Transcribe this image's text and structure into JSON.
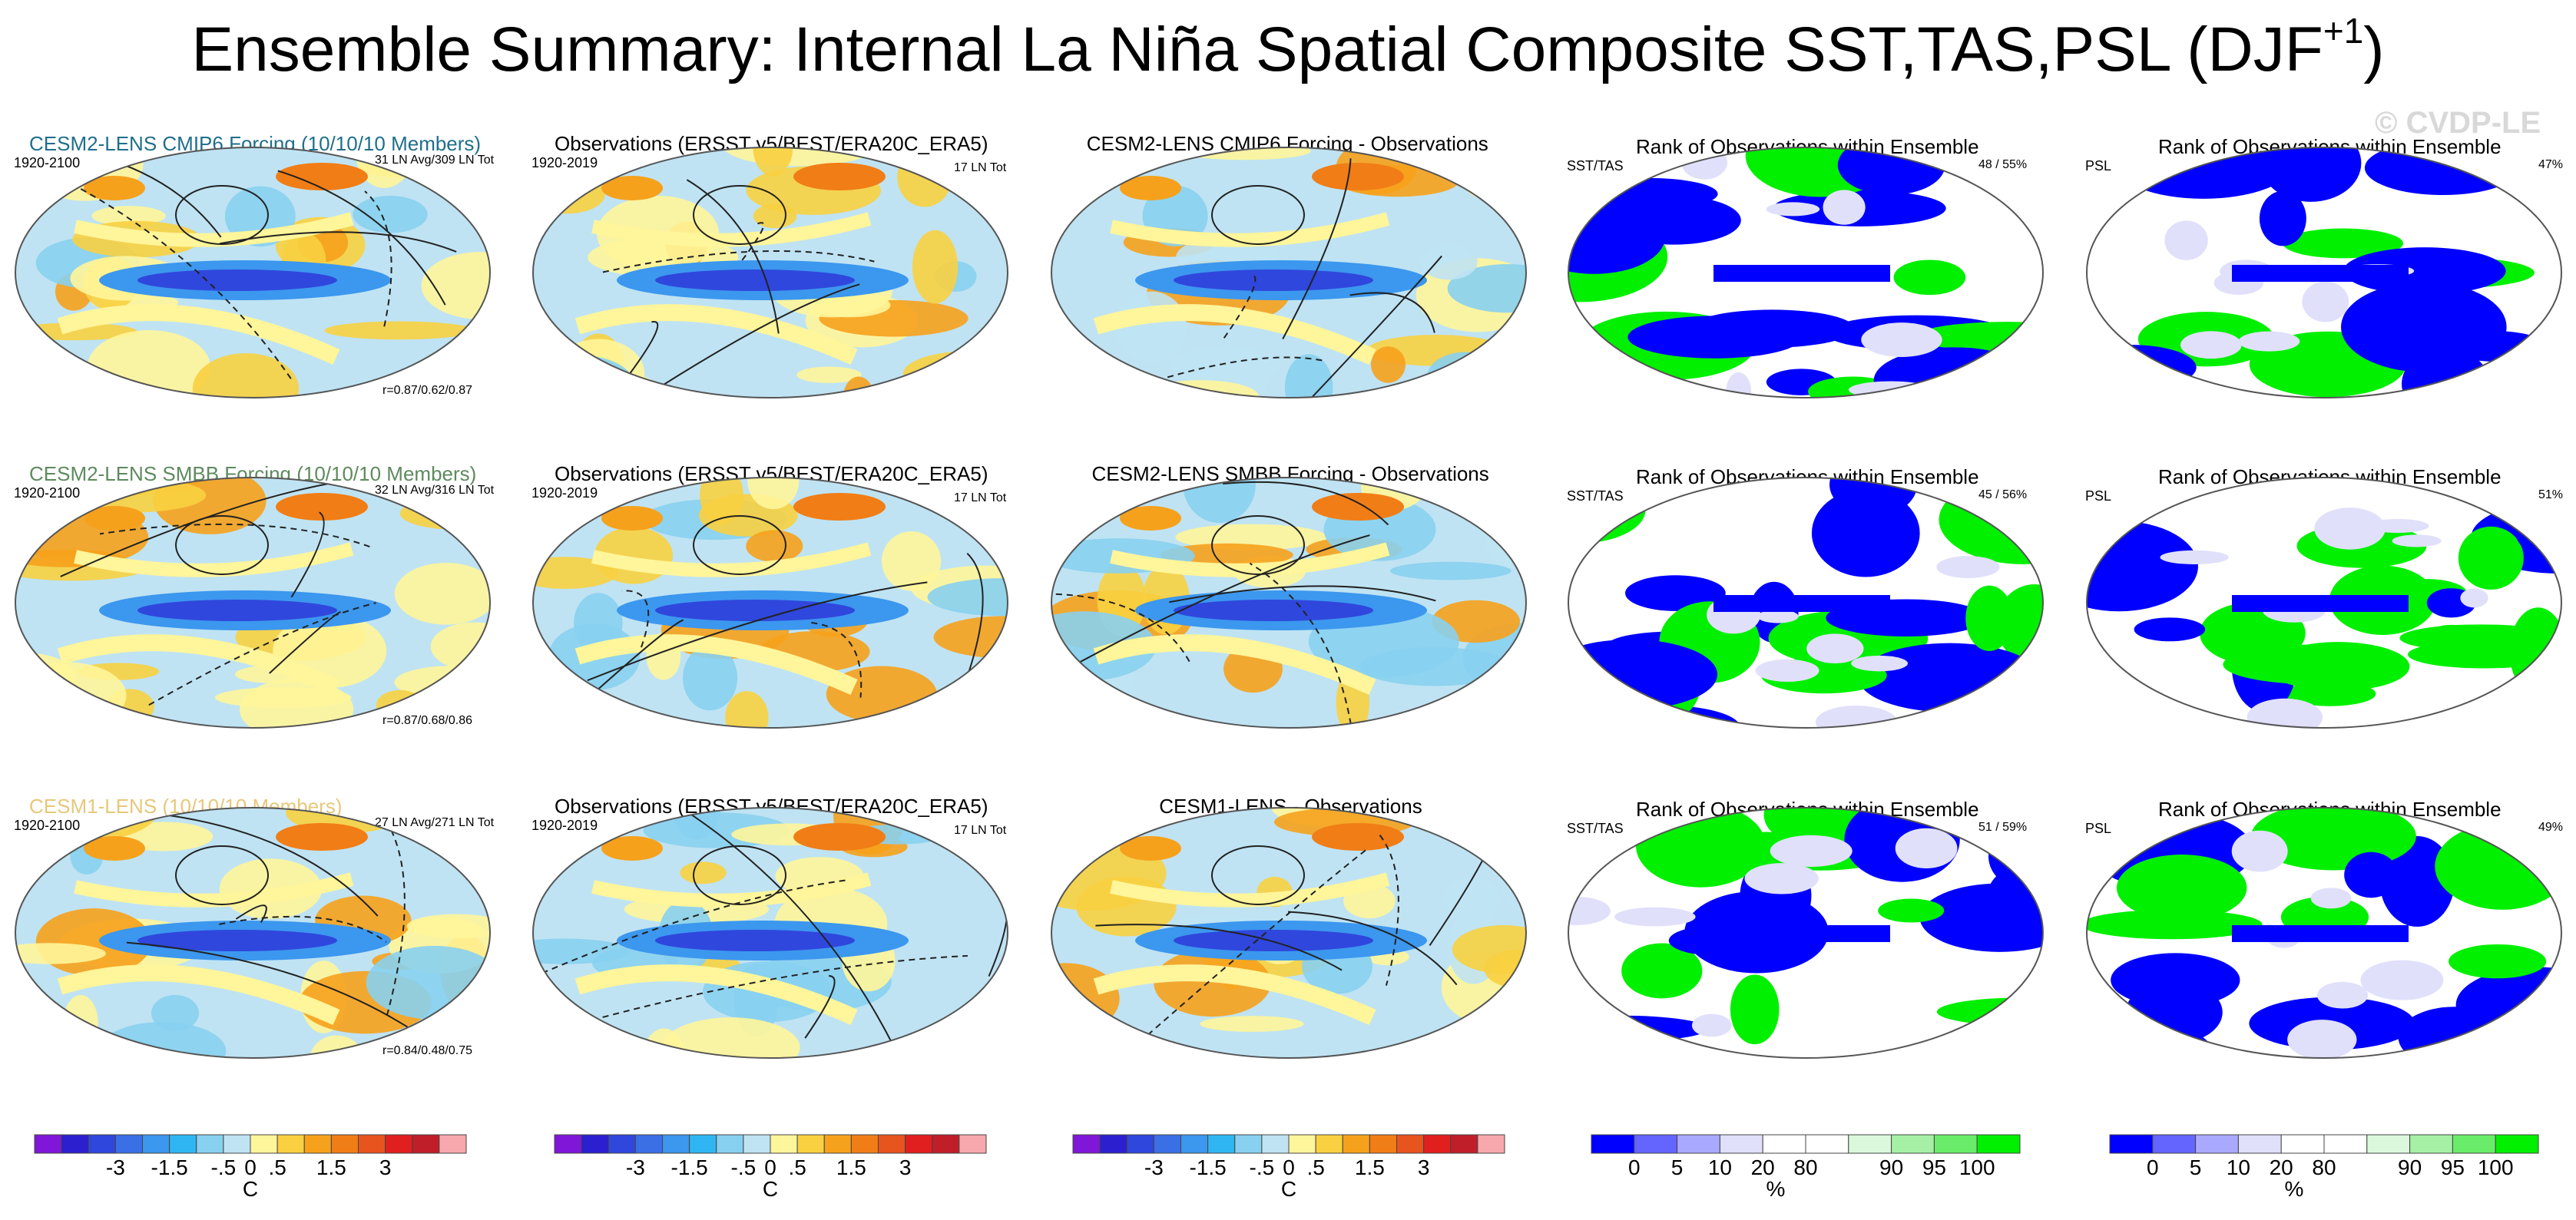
{
  "title": "Ensemble Summary: Internal La Niña Spatial Composite SST,TAS,PSL (DJF",
  "title_sup": "+1",
  "watermark": "© CVDP-LE",
  "colors": {
    "model_1": "#1f6f8b",
    "model_2": "#5e8a5e",
    "model_3": "#e6c87a",
    "blue_rank": "#0000ff",
    "green_rank": "#00f000"
  },
  "rows": [
    {
      "model_title": "CESM2-LENS CMIP6 Forcing (10/10/10 Members)",
      "model_years": "1920-2100",
      "model_note": "31 LN Avg/309 LN Tot",
      "pattern_corr": "r=0.87/0.62/0.87",
      "obs_title": "Observations (ERSST v5/BEST/ERA20C_ERA5)",
      "obs_years": "1920-2019",
      "obs_note": "17 LN Tot",
      "diff_title": "CESM2-LENS CMIP6 Forcing - Observations",
      "rank_title": "Rank of Observations within Ensemble",
      "rank_sst_label": "SST/TAS",
      "rank_sst_pct": "48 /  55%",
      "rank_psl_label": "PSL",
      "rank_psl_pct": "47%"
    },
    {
      "model_title": "CESM2-LENS SMBB Forcing (10/10/10 Members)",
      "model_years": "1920-2100",
      "model_note": "32 LN Avg/316 LN Tot",
      "pattern_corr": "r=0.87/0.68/0.86",
      "obs_title": "Observations (ERSST v5/BEST/ERA20C_ERA5)",
      "obs_years": "1920-2019",
      "obs_note": "17 LN Tot",
      "diff_title": "CESM2-LENS SMBB Forcing - Observations",
      "rank_title": "Rank of Observations within Ensemble",
      "rank_sst_label": "SST/TAS",
      "rank_sst_pct": "45 /  56%",
      "rank_psl_label": "PSL",
      "rank_psl_pct": "51%"
    },
    {
      "model_title": "CESM1-LENS (10/10/10 Members)",
      "model_years": "1920-2100",
      "model_note": "27 LN Avg/271 LN Tot",
      "pattern_corr": "r=0.84/0.48/0.75",
      "obs_title": "Observations (ERSST v5/BEST/ERA20C_ERA5)",
      "obs_years": "1920-2019",
      "obs_note": "17 LN Tot",
      "diff_title": "CESM1-LENS - Observations",
      "rank_title": "Rank of Observations within Ensemble",
      "rank_sst_label": "SST/TAS",
      "rank_sst_pct": "51 /  59%",
      "rank_psl_label": "PSL",
      "rank_psl_pct": "49%"
    }
  ],
  "chart_data": [
    {
      "type": "heatmap",
      "name": "temperature colorbar",
      "unit": "C",
      "colors": [
        "#7f16d8",
        "#2b1fcf",
        "#2f47dc",
        "#3b6fe6",
        "#3c97ee",
        "#2fb6f2",
        "#88d0f0",
        "#bfe3f3",
        "#fff59a",
        "#f8d040",
        "#f6a11c",
        "#f17d16",
        "#e8541e",
        "#e21f1f",
        "#c01f2a",
        "#f6a8ad"
      ],
      "tick_labels": [
        "-3",
        "-1.5",
        "-.5",
        "0",
        ".5",
        "1.5",
        "3"
      ]
    },
    {
      "type": "heatmap",
      "name": "rank colorbar",
      "unit": "%",
      "colors": [
        "#0000ff",
        "#6464ff",
        "#a9a9ff",
        "#e0e0fb",
        "#ffffff",
        "#ffffff",
        "#dcf8dc",
        "#a6f0a6",
        "#69ec69",
        "#00f000"
      ],
      "tick_labels": [
        "0",
        "5",
        "10",
        "20",
        "80",
        "90",
        "95",
        "100"
      ]
    }
  ]
}
